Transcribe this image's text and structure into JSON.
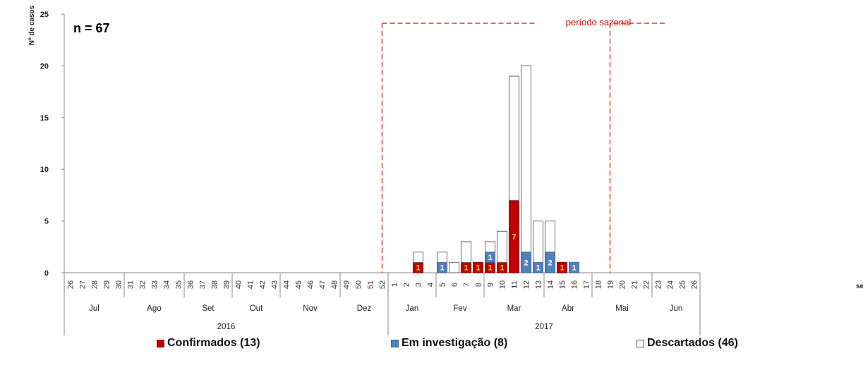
{
  "chart_data": {
    "type": "bar",
    "stacked": true,
    "ylabel": "Nº de casos",
    "xlabel_partial": "se",
    "ylim": [
      0,
      25
    ],
    "yticks": [
      0,
      5,
      10,
      15,
      20,
      25
    ],
    "annotation_n": "n = 67",
    "seasonal_label": "período sazonal",
    "seasonal_period": {
      "from_week": "2016-52",
      "to_week": "2017-19"
    },
    "x": [
      "26",
      "27",
      "28",
      "29",
      "30",
      "31",
      "32",
      "33",
      "34",
      "35",
      "36",
      "37",
      "38",
      "39",
      "40",
      "41",
      "42",
      "43",
      "44",
      "45",
      "46",
      "47",
      "48",
      "49",
      "50",
      "51",
      "52",
      "1",
      "2",
      "3",
      "4",
      "5",
      "6",
      "7",
      "8",
      "9",
      "10",
      "11",
      "12",
      "13",
      "14",
      "15",
      "16",
      "17",
      "18",
      "19",
      "20",
      "21",
      "22",
      "23",
      "24",
      "25",
      "26"
    ],
    "months": [
      {
        "label": "Jul",
        "weeks": 5
      },
      {
        "label": "Ago",
        "weeks": 5
      },
      {
        "label": "Set",
        "weeks": 4
      },
      {
        "label": "Out",
        "weeks": 4
      },
      {
        "label": "Nov",
        "weeks": 5
      },
      {
        "label": "Dez",
        "weeks": 4
      },
      {
        "label": "Jan",
        "weeks": 4
      },
      {
        "label": "Fev",
        "weeks": 4
      },
      {
        "label": "Mar",
        "weeks": 5
      },
      {
        "label": "Abr",
        "weeks": 4
      },
      {
        "label": "Mai",
        "weeks": 5
      },
      {
        "label": "Jun",
        "weeks": 4
      }
    ],
    "years": [
      {
        "label": "2016",
        "weeks": 27
      },
      {
        "label": "2017",
        "weeks": 26
      }
    ],
    "series": [
      {
        "name": "Confirmados (13)",
        "color": "#c00000",
        "values": [
          0,
          0,
          0,
          0,
          0,
          0,
          0,
          0,
          0,
          0,
          0,
          0,
          0,
          0,
          0,
          0,
          0,
          0,
          0,
          0,
          0,
          0,
          0,
          0,
          0,
          0,
          0,
          0,
          0,
          1,
          0,
          0,
          0,
          1,
          1,
          1,
          1,
          7,
          0,
          0,
          0,
          1,
          0,
          0,
          0,
          0,
          0,
          0,
          0,
          0,
          0,
          0,
          0
        ]
      },
      {
        "name": "Em investigação (8)",
        "color": "#4f81bd",
        "values": [
          0,
          0,
          0,
          0,
          0,
          0,
          0,
          0,
          0,
          0,
          0,
          0,
          0,
          0,
          0,
          0,
          0,
          0,
          0,
          0,
          0,
          0,
          0,
          0,
          0,
          0,
          0,
          0,
          0,
          0,
          0,
          1,
          0,
          0,
          0,
          1,
          0,
          0,
          2,
          1,
          2,
          0,
          1,
          0,
          0,
          0,
          0,
          0,
          0,
          0,
          0,
          0,
          0
        ]
      },
      {
        "name": "Descartados (46)",
        "color": "#ffffff",
        "values": [
          0,
          0,
          0,
          0,
          0,
          0,
          0,
          0,
          0,
          0,
          0,
          0,
          0,
          0,
          0,
          0,
          0,
          0,
          0,
          0,
          0,
          0,
          0,
          0,
          0,
          0,
          0,
          0,
          0,
          1,
          0,
          1,
          1,
          2,
          0,
          1,
          3,
          12,
          18,
          4,
          3,
          0,
          0,
          0,
          0,
          0,
          0,
          0,
          0,
          0,
          0,
          0,
          0
        ]
      }
    ],
    "legend_position": "bottom"
  }
}
